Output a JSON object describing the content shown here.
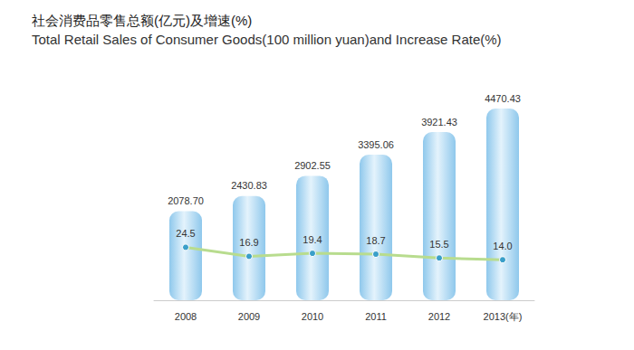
{
  "chart_data": {
    "type": "bar",
    "title": "社会消费品零售总额(亿元)及增速(%)",
    "subtitle": "Total Retail Sales of Consumer Goods(100 million yuan)and Increase Rate(%)",
    "categories": [
      "2008",
      "2009",
      "2010",
      "2011",
      "2012",
      "2013(年)"
    ],
    "series": [
      {
        "type": "bar",
        "color": "#8fc8ec",
        "values": [
          2078.7,
          2430.83,
          2902.55,
          3395.06,
          3921.43,
          4470.43
        ],
        "value_labels": [
          "2078.70",
          "2430.83",
          "2902.55",
          "3395.06",
          "3921.43",
          "4470.43"
        ]
      },
      {
        "type": "line",
        "axis": "y2",
        "color": "#b8dc8e",
        "marker": "circle",
        "values": [
          24.5,
          16.9,
          19.4,
          18.7,
          15.5,
          14.0
        ],
        "value_labels": [
          "24.5",
          "16.9",
          "19.4",
          "18.7",
          "15.5",
          "14.0"
        ]
      }
    ],
    "ylim": [
      0,
      5000
    ],
    "y2lim": [
      -20,
      160
    ],
    "data_labels": true,
    "tick_labels": "x",
    "grid": false
  }
}
